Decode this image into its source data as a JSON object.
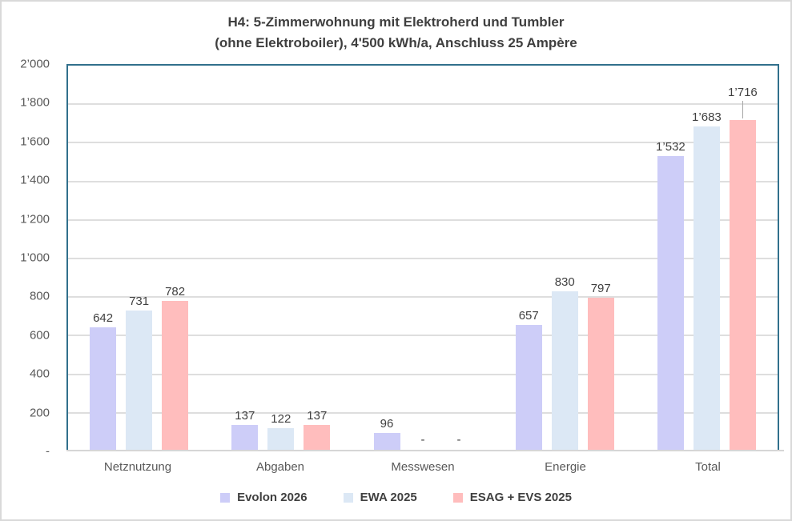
{
  "title": {
    "line1": "H4: 5-Zimmerwohnung mit Elektroherd und Tumbler",
    "line2": "(ohne Elektroboiler), 4'500 kWh/a, Anschluss 25 Ampère"
  },
  "chart_data": {
    "type": "bar",
    "title": "H4: 5-Zimmerwohnung mit Elektroherd und Tumbler (ohne Elektroboiler), 4'500 kWh/a, Anschluss 25 Ampère",
    "categories": [
      "Netznutzung",
      "Abgaben",
      "Messwesen",
      "Energie",
      "Total"
    ],
    "series": [
      {
        "name": "Evolon 2026",
        "color": "#CDCDF8",
        "values": [
          642,
          137,
          96,
          657,
          1532
        ],
        "labels": [
          "642",
          "137",
          "96",
          "657",
          "1’532"
        ]
      },
      {
        "name": "EWA 2025",
        "color": "#DCE8F5",
        "values": [
          731,
          122,
          0,
          830,
          1683
        ],
        "labels": [
          "731",
          "122",
          "-",
          "830",
          "1’683"
        ]
      },
      {
        "name": "ESAG + EVS 2025",
        "color": "#FFBDBD",
        "values": [
          782,
          137,
          0,
          797,
          1716
        ],
        "labels": [
          "782",
          "137",
          "-",
          "797",
          "1’716"
        ],
        "label_leader_index": 4
      }
    ],
    "ylim": [
      0,
      2000
    ],
    "yticks": [
      {
        "value": 0,
        "label": "-"
      },
      {
        "value": 200,
        "label": "200"
      },
      {
        "value": 400,
        "label": "400"
      },
      {
        "value": 600,
        "label": "600"
      },
      {
        "value": 800,
        "label": "800"
      },
      {
        "value": 1000,
        "label": "1’000"
      },
      {
        "value": 1200,
        "label": "1’200"
      },
      {
        "value": 1400,
        "label": "1’400"
      },
      {
        "value": 1600,
        "label": "1’600"
      },
      {
        "value": 1800,
        "label": "1’800"
      },
      {
        "value": 2000,
        "label": "2’000"
      }
    ],
    "grid": "horizontal",
    "legend_position": "bottom"
  },
  "colors": {
    "plot_border": "#31708C",
    "gridline": "#DEDEDE",
    "axis_line": "#D6D6D6",
    "leader_line": "#A6A6A6",
    "frame_border": "#D9D9D9",
    "title_text": "#3F3F3F",
    "tick_text": "#595959",
    "data_label_text": "#404040"
  }
}
